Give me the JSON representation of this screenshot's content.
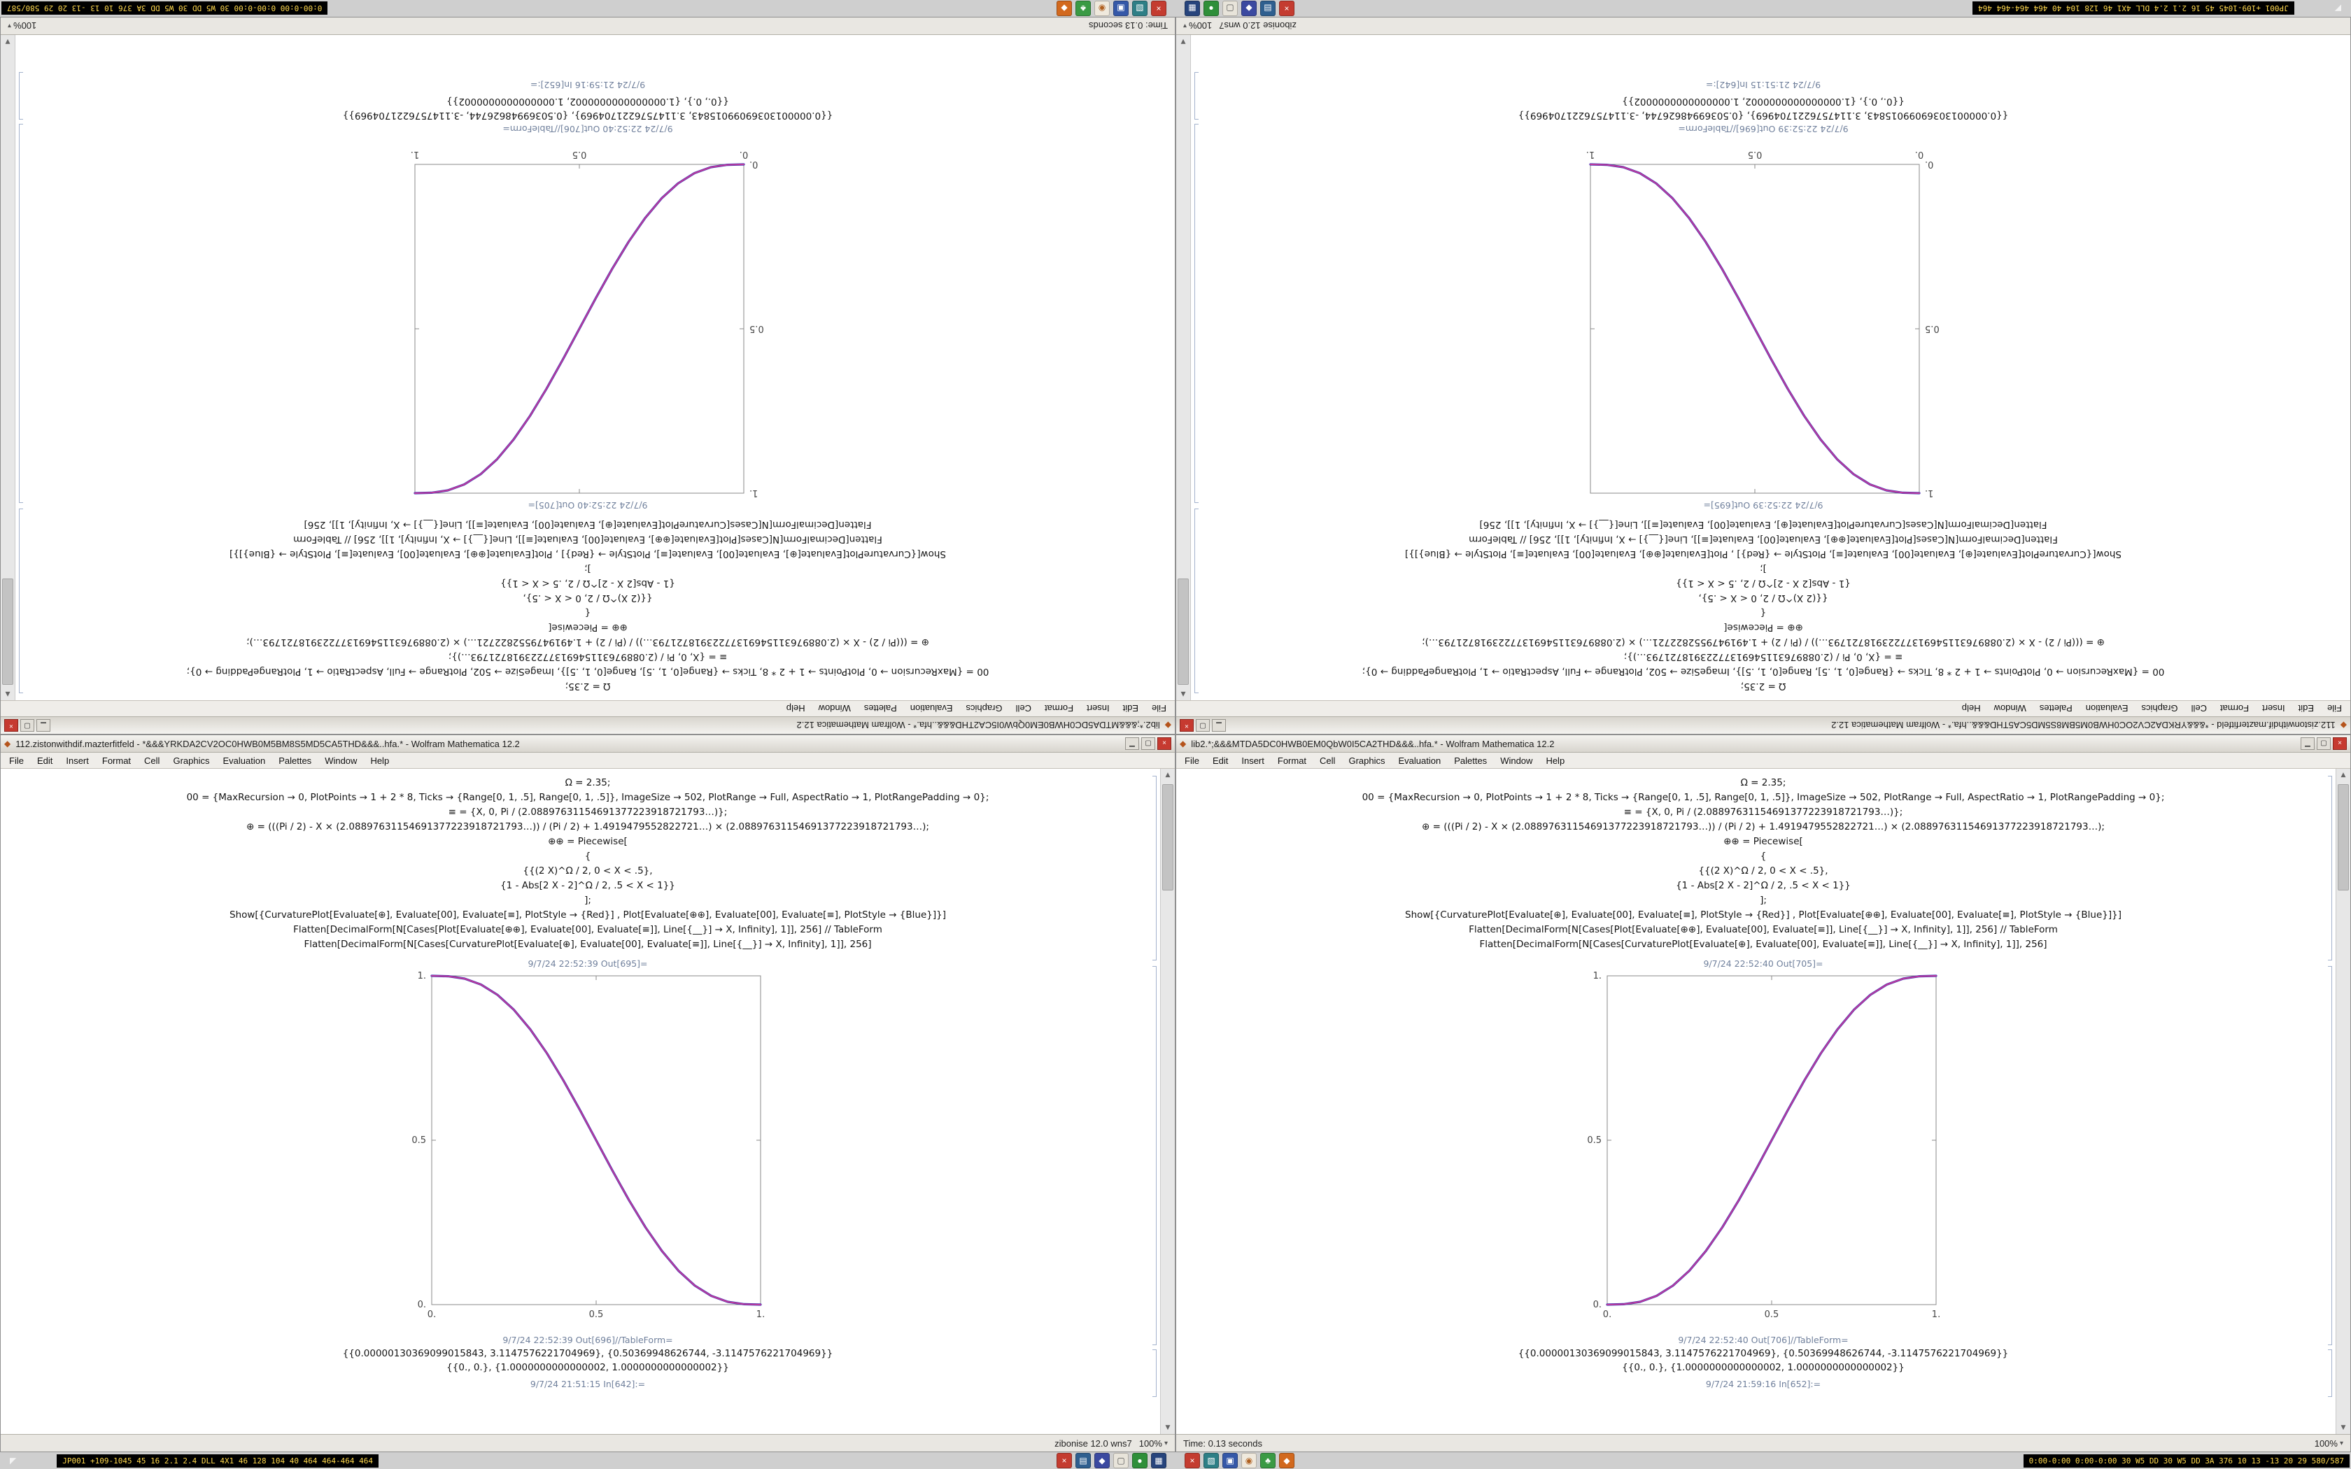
{
  "desktop": {
    "bg": "#cfcfcf"
  },
  "taskbar": {
    "marker": "◤",
    "left_chip": "JP001 +109-1045 45 16 2.1 2.4 DLL 4X1 46 128 104 40 464 464-464 464",
    "right_chip": "0:00-0:00 0:00-0:00 30 W5 DD 30 W5 DD 3A 376 10 13 -13 20 29 580/587",
    "icon_groups": [
      [
        {
          "name": "close-red-icon",
          "color": "#c43c30",
          "glyph": "×"
        },
        {
          "name": "app-steelblue-icon",
          "color": "#2f5f8f",
          "glyph": "▤"
        },
        {
          "name": "app-indigo-icon",
          "color": "#3b49a0",
          "glyph": "◆"
        },
        {
          "name": "app-light-icon",
          "color": "#e8e4da",
          "glyph": "▢",
          "fg": "#555555"
        },
        {
          "name": "app-green-icon",
          "color": "#2f8f3a",
          "glyph": "●"
        },
        {
          "name": "app-navy-icon",
          "color": "#27447c",
          "glyph": "▦"
        }
      ],
      [
        {
          "name": "close-red-icon",
          "color": "#c43c30",
          "glyph": "×"
        },
        {
          "name": "app-teal-icon",
          "color": "#2e7f86",
          "glyph": "▧"
        },
        {
          "name": "app-blue-icon",
          "color": "#3558a8",
          "glyph": "▣"
        },
        {
          "name": "app-cream-icon",
          "color": "#efe9dd",
          "glyph": "◉",
          "fg": "#b06020"
        },
        {
          "name": "app-green2-icon",
          "color": "#3a9a44",
          "glyph": "♣"
        },
        {
          "name": "app-orange-icon",
          "color": "#d2691e",
          "glyph": "◆"
        }
      ]
    ]
  },
  "menu": {
    "items": [
      "File",
      "Edit",
      "Insert",
      "Format",
      "Cell",
      "Graphics",
      "Evaluation",
      "Palettes",
      "Window",
      "Help"
    ]
  },
  "windows": {
    "a": {
      "title": "lib2.*;&&&MTDA5DC0HWB0EM0QbW0I5CA2THD&&&..hfa.* - Wolfram Mathematica 12.2",
      "chart": 0,
      "cells": [
        "Ω = 2.35;",
        "00 = {MaxRecursion → 0, PlotPoints → 1 + 2 * 8, Ticks → {Range[0, 1, .5], Range[0, 1, .5]}, ImageSize → 502, PlotRange → Full, AspectRatio → 1, PlotRangePadding → 0};",
        "≡ = {X, 0, Pi / (2.08897631154691377223918721793…)};",
        "⊕ = (((Pi / 2) - X × (2.08897631154691377223918721793…)) / (Pi / 2) + 1.4919479552822721…) × (2.08897631154691377223918721793…);",
        "⊕⊕ = Piecewise[",
        "{",
        "{{(2 X)^Ω / 2, 0 < X < .5},",
        "{1 - Abs[2 X - 2]^Ω / 2, .5 < X < 1}}",
        "];",
        "Show[{CurvaturePlot[Evaluate[⊕], Evaluate[00], Evaluate[≡], PlotStyle → {Red}] , Plot[Evaluate[⊕⊕], Evaluate[00], Evaluate[≡], PlotStyle → {Blue}]}]",
        "Flatten[DecimalForm[N[Cases[Plot[Evaluate[⊕⊕], Evaluate[00], Evaluate[≡]], Line[{__}] → X, Infinity], 1]], 256] // TableForm",
        "Flatten[DecimalForm[N[Cases[CurvaturePlot[Evaluate[⊕], Evaluate[00], Evaluate[≡]], Line[{__}] → X, Infinity], 1]], 256]"
      ],
      "out_plot_label": "9/7/24 22:52:40 Out[705]=",
      "out_table_label": "9/7/24 22:52:40 Out[706]//TableForm=",
      "table_lines": [
        "{{0.00000130369099015843, 3.1147576221704969}, {0.50369948626744, -3.1147576221704969}}",
        "{{0., 0.}, {1.0000000000000002, 1.0000000000000002}}"
      ],
      "bottom_label": "9/7/24 21:59:16 In[652]:=",
      "status_left": "Time: 0.13 seconds",
      "status_right": "",
      "zoom": "100%"
    },
    "b": {
      "title": "112.zistonwithdif.mazterfitfeld - *&&&YRKDA2CV2OC0HWB0M5BM8S5MD5CA5THD&&&..hfa.* - Wolfram Mathematica 12.2",
      "chart": 1,
      "cells": [
        "Ω = 2.35;",
        "00 = {MaxRecursion → 0, PlotPoints → 1 + 2 * 8, Ticks → {Range[0, 1, .5], Range[0, 1, .5]}, ImageSize → 502, PlotRange → Full, AspectRatio → 1, PlotRangePadding → 0};",
        "≡ = {X, 0, Pi / (2.08897631154691377223918721793…)};",
        "⊕ = (((Pi / 2) - X × (2.08897631154691377223918721793…)) / (Pi / 2) + 1.4919479552822721…) × (2.08897631154691377223918721793…);",
        "⊕⊕ = Piecewise[",
        "{",
        "{{(2 X)^Ω / 2, 0 < X < .5},",
        "{1 - Abs[2 X - 2]^Ω / 2, .5 < X < 1}}",
        "];",
        "Show[{CurvaturePlot[Evaluate[⊕], Evaluate[00], Evaluate[≡], PlotStyle → {Red}] , Plot[Evaluate[⊕⊕], Evaluate[00], Evaluate[≡], PlotStyle → {Blue}]}]",
        "Flatten[DecimalForm[N[Cases[Plot[Evaluate[⊕⊕], Evaluate[00], Evaluate[≡]], Line[{__}] → X, Infinity], 1]], 256] // TableForm",
        "Flatten[DecimalForm[N[Cases[CurvaturePlot[Evaluate[⊕], Evaluate[00], Evaluate[≡]], Line[{__}] → X, Infinity], 1]], 256]"
      ],
      "out_plot_label": "9/7/24 22:52:39 Out[695]=",
      "out_table_label": "9/7/24 22:52:39 Out[696]//TableForm=",
      "table_lines": [
        "{{0.00000130369099015843, 3.1147576221704969}, {0.50369948626744, -3.1147576221704969}}",
        "{{0., 0.}, {1.0000000000000002, 1.0000000000000002}}"
      ],
      "bottom_label": "9/7/24 21:51:15 In[642]:=",
      "status_left": "",
      "status_right": "zibonise 12.0 wns7",
      "zoom": "100%"
    }
  },
  "chart_data": [
    {
      "type": "line",
      "title": "",
      "xlabel": "",
      "ylabel": "",
      "xlim": [
        0,
        1
      ],
      "ylim": [
        0,
        1
      ],
      "grid": false,
      "legend": "none",
      "x_ticks": [
        "0.",
        "0.5",
        "1."
      ],
      "y_ticks": [
        "0.",
        "0.5",
        "1."
      ],
      "x": [
        0,
        0.05,
        0.1,
        0.15,
        0.2,
        0.25,
        0.3,
        0.35,
        0.4,
        0.45,
        0.5,
        0.55,
        0.6,
        0.65,
        0.7,
        0.75,
        0.8,
        0.85,
        0.9,
        0.95,
        1
      ],
      "series": [
        {
          "name": "Plot (Blue)",
          "color": "#3434b8",
          "values": [
            0,
            0.0012,
            0.0086,
            0.0266,
            0.0579,
            0.1035,
            0.1631,
            0.2352,
            0.3174,
            0.4069,
            0.5,
            0.5931,
            0.6826,
            0.7648,
            0.8369,
            0.8965,
            0.9421,
            0.9734,
            0.9914,
            0.9988,
            1
          ]
        },
        {
          "name": "CurvaturePlot (Red)",
          "color": "#c0399b",
          "values": [
            0,
            0.0012,
            0.0086,
            0.0266,
            0.0579,
            0.1035,
            0.1631,
            0.2352,
            0.3174,
            0.4069,
            0.5,
            0.5931,
            0.6826,
            0.7648,
            0.8369,
            0.8965,
            0.9421,
            0.9734,
            0.9914,
            0.9988,
            1
          ]
        }
      ]
    },
    {
      "type": "line",
      "title": "",
      "xlabel": "",
      "ylabel": "",
      "xlim": [
        0,
        1
      ],
      "ylim": [
        0,
        1
      ],
      "grid": false,
      "legend": "none",
      "x_ticks": [
        "0.",
        "0.5",
        "1."
      ],
      "y_ticks": [
        "0.",
        "0.5",
        "1."
      ],
      "x": [
        0,
        0.05,
        0.1,
        0.15,
        0.2,
        0.25,
        0.3,
        0.35,
        0.4,
        0.45,
        0.5,
        0.55,
        0.6,
        0.65,
        0.7,
        0.75,
        0.8,
        0.85,
        0.9,
        0.95,
        1
      ],
      "series": [
        {
          "name": "Plot (Blue)",
          "color": "#3434b8",
          "values": [
            1,
            0.9988,
            0.9914,
            0.9734,
            0.9421,
            0.8965,
            0.8369,
            0.7648,
            0.6826,
            0.5931,
            0.5,
            0.4069,
            0.3174,
            0.2352,
            0.1631,
            0.1035,
            0.0579,
            0.0266,
            0.0086,
            0.0012,
            0
          ]
        },
        {
          "name": "CurvaturePlot (Red)",
          "color": "#c0399b",
          "values": [
            1,
            0.9988,
            0.9914,
            0.9734,
            0.9421,
            0.8965,
            0.8369,
            0.7648,
            0.6826,
            0.5931,
            0.5,
            0.4069,
            0.3174,
            0.2352,
            0.1631,
            0.1035,
            0.0579,
            0.0266,
            0.0086,
            0.0012,
            0
          ]
        }
      ]
    }
  ]
}
